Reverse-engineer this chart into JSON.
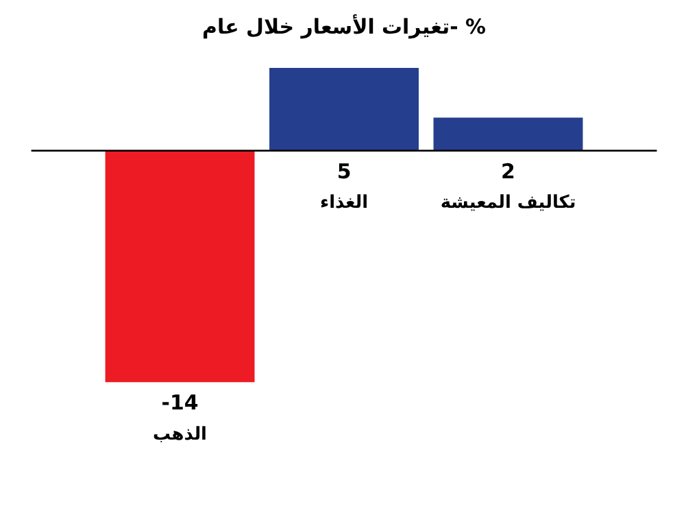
{
  "chart_data": {
    "type": "bar",
    "title": "تغيرات الأسعار خلال عام- %",
    "categories": [
      "الذهب",
      "الغذاء",
      "تكاليف المعيشة"
    ],
    "values": [
      -14,
      5,
      2
    ],
    "colors": [
      "#ed1c24",
      "#253f8e",
      "#253f8e"
    ],
    "data_labels": true
  }
}
